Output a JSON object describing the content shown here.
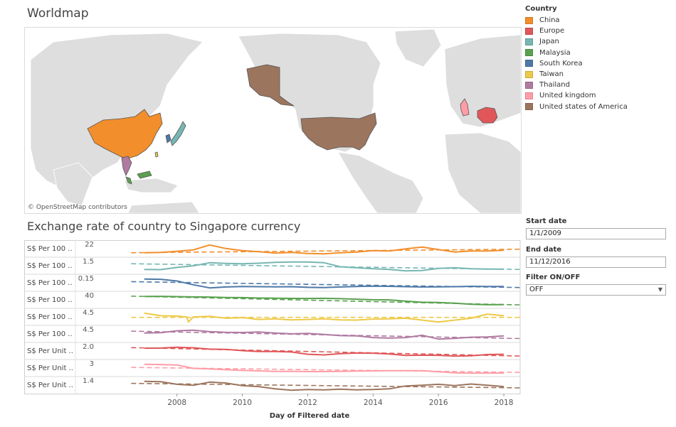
{
  "map": {
    "title": "Worldmap",
    "attribution": "© OpenStreetMap contributors"
  },
  "legend": {
    "title": "Country",
    "items": [
      {
        "label": "China",
        "color": "#F28E2B"
      },
      {
        "label": "Europe",
        "color": "#E15759"
      },
      {
        "label": "Japan",
        "color": "#76B7B2"
      },
      {
        "label": "Malaysia",
        "color": "#59A14F"
      },
      {
        "label": "South Korea",
        "color": "#4E79A7"
      },
      {
        "label": "Taiwan",
        "color": "#EDC948"
      },
      {
        "label": "Thailand",
        "color": "#B07AA1"
      },
      {
        "label": "United kingdom",
        "color": "#FF9DA7"
      },
      {
        "label": "United states of America",
        "color": "#9C755F"
      }
    ]
  },
  "filters": {
    "start_label": "Start date",
    "start_value": "1/1/2009",
    "end_label": "End date",
    "end_value": "11/12/2016",
    "filter_label": "Filter ON/OFF",
    "filter_value": "OFF"
  },
  "chart_data": {
    "type": "line",
    "title": "Exchange rate of country to Singapore currency",
    "xlabel": "Day of Filtered date",
    "x_ticks": [
      "2008",
      "2010",
      "2012",
      "2014",
      "2016",
      "2018"
    ],
    "xlim": [
      2006.2,
      2018.5
    ],
    "series": [
      {
        "name": "China",
        "row_label": "S$ Per 100 ..",
        "tick": "22",
        "color": "#F28E2B",
        "x": [
          2007.0,
          2007.5,
          2008.0,
          2008.5,
          2009.0,
          2009.5,
          2010.0,
          2010.5,
          2011.0,
          2011.5,
          2012.0,
          2012.5,
          2013.0,
          2013.5,
          2014.0,
          2014.5,
          2015.0,
          2015.5,
          2016.0,
          2016.5,
          2017.0,
          2017.5,
          2018.0
        ],
        "values": [
          20.4,
          20.5,
          20.8,
          21.2,
          22.6,
          21.6,
          21.0,
          20.7,
          20.3,
          20.5,
          20.2,
          20.1,
          20.4,
          20.6,
          21.0,
          20.9,
          21.5,
          22.0,
          21.3,
          20.6,
          20.9,
          20.9,
          21.1
        ],
        "trend": [
          20.4,
          21.4
        ]
      },
      {
        "name": "Japan",
        "row_label": "S$ Per 100 ..",
        "tick": "1.5",
        "color": "#76B7B2",
        "x": [
          2007.0,
          2007.5,
          2008.0,
          2008.5,
          2009.0,
          2009.5,
          2010.0,
          2010.5,
          2011.0,
          2011.5,
          2012.0,
          2012.5,
          2013.0,
          2013.5,
          2014.0,
          2014.5,
          2015.0,
          2015.5,
          2016.0,
          2016.5,
          2017.0,
          2017.5,
          2018.0
        ],
        "values": [
          1.18,
          1.17,
          1.3,
          1.4,
          1.58,
          1.54,
          1.52,
          1.55,
          1.6,
          1.62,
          1.62,
          1.58,
          1.34,
          1.28,
          1.22,
          1.18,
          1.1,
          1.12,
          1.24,
          1.28,
          1.22,
          1.2,
          1.2
        ],
        "trend": [
          1.52,
          1.18
        ]
      },
      {
        "name": "South Korea",
        "row_label": "S$ Per 100 ..",
        "tick": "0.15",
        "color": "#4E79A7",
        "x": [
          2007.0,
          2007.5,
          2008.0,
          2008.5,
          2009.0,
          2009.5,
          2010.0,
          2010.5,
          2011.0,
          2011.5,
          2012.0,
          2012.5,
          2013.0,
          2013.5,
          2014.0,
          2014.5,
          2015.0,
          2015.5,
          2016.0,
          2016.5,
          2017.0,
          2017.5,
          2018.0
        ],
        "values": [
          0.161,
          0.16,
          0.15,
          0.128,
          0.11,
          0.115,
          0.118,
          0.117,
          0.116,
          0.117,
          0.113,
          0.112,
          0.115,
          0.118,
          0.12,
          0.119,
          0.117,
          0.115,
          0.116,
          0.117,
          0.119,
          0.118,
          0.118
        ],
        "trend": [
          0.146,
          0.112
        ]
      },
      {
        "name": "Malaysia",
        "row_label": "S$ Per 100 ..",
        "tick": "40",
        "color": "#59A14F",
        "x": [
          2007.0,
          2007.5,
          2008.0,
          2008.5,
          2009.0,
          2009.5,
          2010.0,
          2010.5,
          2011.0,
          2011.5,
          2012.0,
          2012.5,
          2013.0,
          2013.5,
          2014.0,
          2014.5,
          2015.0,
          2015.5,
          2016.0,
          2016.5,
          2017.0,
          2017.5,
          2018.0
        ],
        "values": [
          43.5,
          43.6,
          43.2,
          42.8,
          42.6,
          42.0,
          41.8,
          41.2,
          41.0,
          40.7,
          40.6,
          40.8,
          40.3,
          39.6,
          38.8,
          38.6,
          36.7,
          35.2,
          34.8,
          33.9,
          32.4,
          31.7,
          31.8
        ],
        "trend": [
          43.9,
          31.4
        ]
      },
      {
        "name": "Taiwan",
        "row_label": "S$ Per 100 ..",
        "tick": "4.5",
        "color": "#EDC948",
        "x": [
          2007.0,
          2007.5,
          2008.0,
          2008.3,
          2008.35,
          2008.5,
          2009.0,
          2009.5,
          2010.0,
          2010.5,
          2011.0,
          2011.5,
          2012.0,
          2012.5,
          2013.0,
          2013.5,
          2014.0,
          2014.5,
          2015.0,
          2015.5,
          2016.0,
          2016.5,
          2017.0,
          2017.5,
          2018.0
        ],
        "values": [
          4.75,
          4.55,
          4.52,
          4.45,
          4.05,
          4.45,
          4.5,
          4.35,
          4.4,
          4.25,
          4.3,
          4.22,
          4.25,
          4.3,
          4.22,
          4.2,
          4.28,
          4.3,
          4.35,
          4.2,
          4.05,
          4.2,
          4.35,
          4.68,
          4.55
        ],
        "trend": [
          4.42,
          4.42
        ]
      },
      {
        "name": "Thailand",
        "row_label": "S$ Per 100 ..",
        "tick": "4.5",
        "color": "#B07AA1",
        "x": [
          2007.0,
          2007.5,
          2008.0,
          2008.5,
          2009.0,
          2009.5,
          2010.0,
          2010.5,
          2011.0,
          2011.5,
          2012.0,
          2012.5,
          2013.0,
          2013.5,
          2014.0,
          2014.5,
          2015.0,
          2015.5,
          2016.0,
          2016.5,
          2017.0,
          2017.5,
          2018.0
        ],
        "values": [
          4.35,
          4.38,
          4.55,
          4.6,
          4.48,
          4.42,
          4.4,
          4.45,
          4.35,
          4.28,
          4.32,
          4.22,
          4.12,
          4.1,
          3.95,
          3.9,
          3.95,
          4.15,
          3.82,
          3.88,
          3.98,
          4.0,
          4.1
        ],
        "trend": [
          4.52,
          3.86
        ]
      },
      {
        "name": "Europe",
        "row_label": "S$ Per Unit ..",
        "tick": "2.0",
        "color": "#E15759",
        "x": [
          2007.0,
          2007.5,
          2008.0,
          2008.5,
          2009.0,
          2009.5,
          2010.0,
          2010.5,
          2011.0,
          2011.5,
          2012.0,
          2012.5,
          2013.0,
          2013.5,
          2014.0,
          2014.5,
          2015.0,
          2015.5,
          2016.0,
          2016.5,
          2017.0,
          2017.5,
          2018.0
        ],
        "values": [
          2.02,
          2.03,
          2.08,
          2.05,
          1.96,
          1.94,
          1.86,
          1.8,
          1.8,
          1.77,
          1.62,
          1.58,
          1.66,
          1.7,
          1.69,
          1.64,
          1.54,
          1.56,
          1.55,
          1.5,
          1.52,
          1.6,
          1.62
        ],
        "trend": [
          2.06,
          1.5
        ]
      },
      {
        "name": "United kingdom",
        "row_label": "S$ Per Unit ..",
        "tick": "3",
        "color": "#FF9DA7",
        "x": [
          2007.0,
          2007.5,
          2008.0,
          2008.5,
          2009.0,
          2009.5,
          2010.0,
          2010.5,
          2011.0,
          2011.5,
          2012.0,
          2012.5,
          2013.0,
          2013.5,
          2014.0,
          2014.5,
          2015.0,
          2015.5,
          2016.0,
          2016.5,
          2017.0,
          2017.5,
          2018.0
        ],
        "values": [
          3.05,
          3.02,
          2.96,
          2.45,
          2.38,
          2.25,
          2.15,
          2.08,
          2.0,
          2.02,
          1.98,
          1.98,
          2.0,
          2.05,
          2.08,
          2.1,
          2.1,
          2.12,
          1.95,
          1.8,
          1.75,
          1.76,
          1.76
        ],
        "trend": [
          2.6,
          1.86
        ]
      },
      {
        "name": "United states of America",
        "row_label": "S$ Per Unit ..",
        "tick": "1.4",
        "color": "#9C755F",
        "x": [
          2007.0,
          2007.5,
          2008.0,
          2008.5,
          2009.0,
          2009.5,
          2010.0,
          2010.5,
          2011.0,
          2011.5,
          2012.0,
          2012.5,
          2013.0,
          2013.5,
          2014.0,
          2014.5,
          2015.0,
          2015.5,
          2016.0,
          2016.5,
          2017.0,
          2017.5,
          2018.0
        ],
        "values": [
          1.5,
          1.49,
          1.41,
          1.38,
          1.48,
          1.45,
          1.37,
          1.34,
          1.27,
          1.23,
          1.25,
          1.24,
          1.26,
          1.24,
          1.25,
          1.27,
          1.36,
          1.38,
          1.41,
          1.37,
          1.42,
          1.38,
          1.34
        ],
        "trend": [
          1.44,
          1.3
        ]
      }
    ]
  }
}
